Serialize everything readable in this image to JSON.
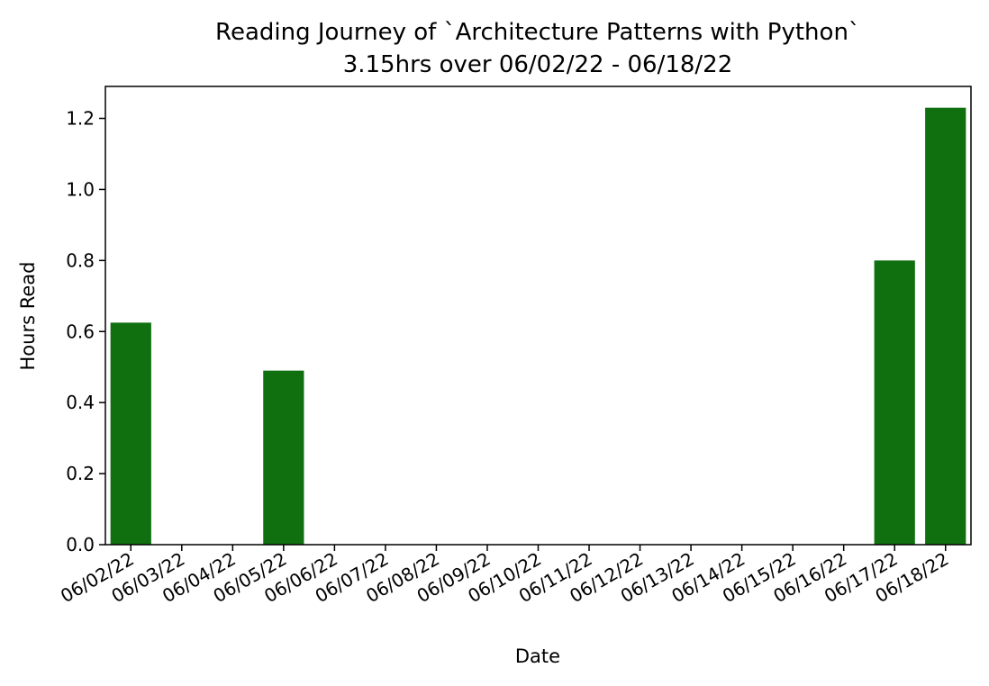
{
  "chart_data": {
    "type": "bar",
    "title": "Reading Journey of `Architecture Patterns with Python`",
    "subtitle": "3.15hrs over 06/02/22 - 06/18/22",
    "xlabel": "Date",
    "ylabel": "Hours Read",
    "categories": [
      "06/02/22",
      "06/03/22",
      "06/04/22",
      "06/05/22",
      "06/06/22",
      "06/07/22",
      "06/08/22",
      "06/09/22",
      "06/10/22",
      "06/11/22",
      "06/12/22",
      "06/13/22",
      "06/14/22",
      "06/15/22",
      "06/16/22",
      "06/17/22",
      "06/18/22"
    ],
    "values": [
      0.625,
      0,
      0,
      0.49,
      0,
      0,
      0,
      0,
      0,
      0,
      0,
      0,
      0,
      0,
      0,
      0.8,
      1.23
    ],
    "ylim": [
      0,
      1.29
    ],
    "yticks": [
      "0.0",
      "0.2",
      "0.4",
      "0.6",
      "0.8",
      "1.0",
      "1.2"
    ],
    "bar_color": "#107010",
    "grid": false
  }
}
